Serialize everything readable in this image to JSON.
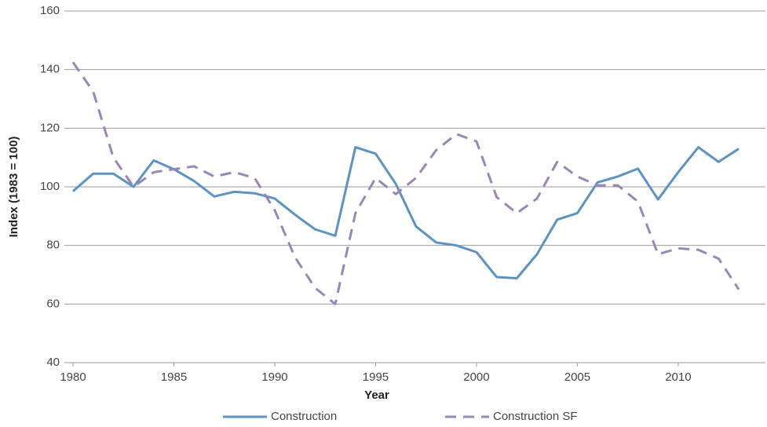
{
  "chart_data": {
    "type": "line",
    "x_label": "Year",
    "y_label": "Index (1983 = 100)",
    "x": [
      1980,
      1981,
      1982,
      1983,
      1984,
      1985,
      1986,
      1987,
      1988,
      1989,
      1990,
      1991,
      1992,
      1993,
      1994,
      1995,
      1996,
      1997,
      1998,
      1999,
      2000,
      2001,
      2002,
      2003,
      2004,
      2005,
      2006,
      2007,
      2008,
      2009,
      2010,
      2011,
      2012,
      2013
    ],
    "series": [
      {
        "name": "Construction",
        "color": "#5b93c4",
        "dash": false,
        "values": [
          98.5,
          104.5,
          104.5,
          100,
          109,
          106,
          102,
          96.7,
          98.3,
          97.8,
          96,
          90.5,
          85.5,
          83.3,
          113.5,
          111.3,
          101,
          86.5,
          81,
          80,
          77.7,
          69.2,
          68.8,
          77,
          88.8,
          91,
          101.5,
          103.5,
          106.2,
          95.7,
          105,
          113.5,
          108.5,
          113
        ]
      },
      {
        "name": "Construction SF",
        "color": "#9a85b8",
        "dash": true,
        "values": [
          142.5,
          132.5,
          110,
          100,
          105,
          106,
          107,
          103.5,
          105,
          103,
          92,
          76,
          65.5,
          60,
          91,
          103,
          97.5,
          103,
          112.5,
          118,
          115.5,
          96.5,
          91,
          96,
          108.5,
          103.5,
          100.5,
          100.5,
          95,
          77,
          79,
          78.5,
          75.5,
          65
        ]
      }
    ],
    "xlim": [
      1980,
      2013
    ],
    "xticks": [
      1980,
      1985,
      1990,
      1995,
      2000,
      2005,
      2010
    ],
    "ylim": [
      40,
      160
    ],
    "yticks": [
      40,
      60,
      80,
      100,
      120,
      140,
      160
    ],
    "grid": true
  }
}
